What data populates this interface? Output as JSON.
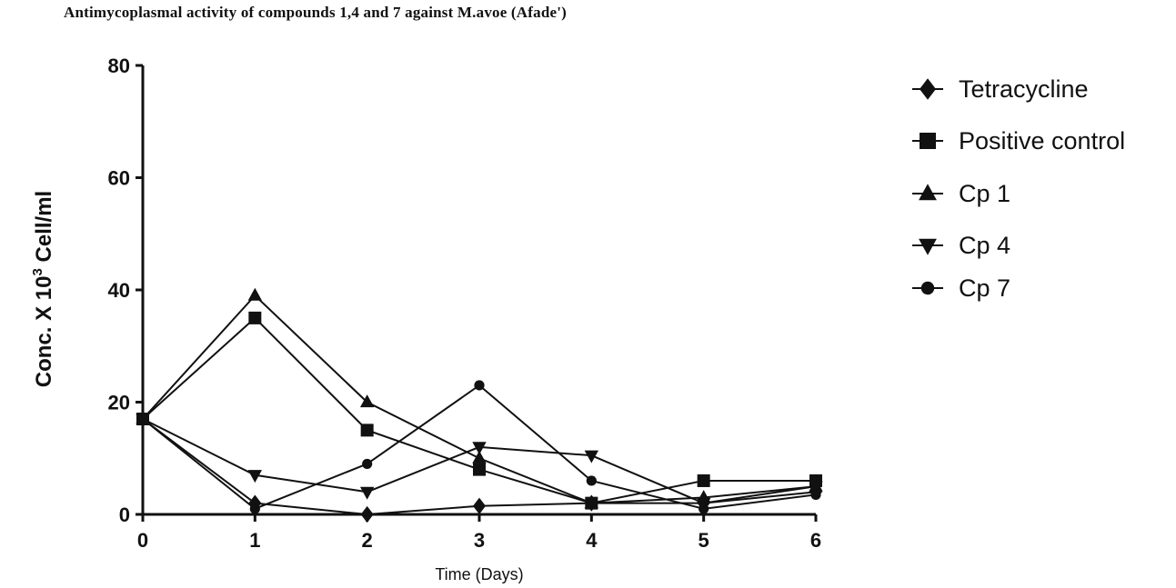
{
  "chart_data": {
    "type": "line",
    "title": "Antimycoplasmal activity of compounds 1,4 and 7 against M.avoe (Afade')",
    "xlabel": "Time (Days)",
    "ylabel": "Conc. X 10",
    "ylabel_sup": "3",
    "ylabel_unit": " Cell/ml",
    "x": [
      0,
      1,
      2,
      3,
      4,
      5,
      6
    ],
    "xlim": [
      0,
      6
    ],
    "ylim": [
      0,
      80
    ],
    "xticks": [
      "0",
      "1",
      "2",
      "3",
      "4",
      "5",
      "6"
    ],
    "yticks": [
      "0",
      "20",
      "40",
      "60",
      "80"
    ],
    "legend_position": "right",
    "series": [
      {
        "name": "Tetracycline",
        "marker": "diamond",
        "values": [
          17,
          2,
          0,
          1.5,
          2,
          2,
          4
        ]
      },
      {
        "name": "Positive control",
        "marker": "square",
        "values": [
          17,
          35,
          15,
          8,
          2,
          6,
          6
        ]
      },
      {
        "name": "Cp 1",
        "marker": "triangle-up",
        "values": [
          17,
          39,
          20,
          10,
          2,
          3,
          5
        ]
      },
      {
        "name": "Cp 4",
        "marker": "triangle-down",
        "values": [
          17,
          7,
          4,
          12,
          10.5,
          2,
          5
        ]
      },
      {
        "name": "Cp 7",
        "marker": "circle",
        "values": [
          17,
          1,
          9,
          23,
          6,
          1,
          3.5
        ]
      }
    ]
  }
}
